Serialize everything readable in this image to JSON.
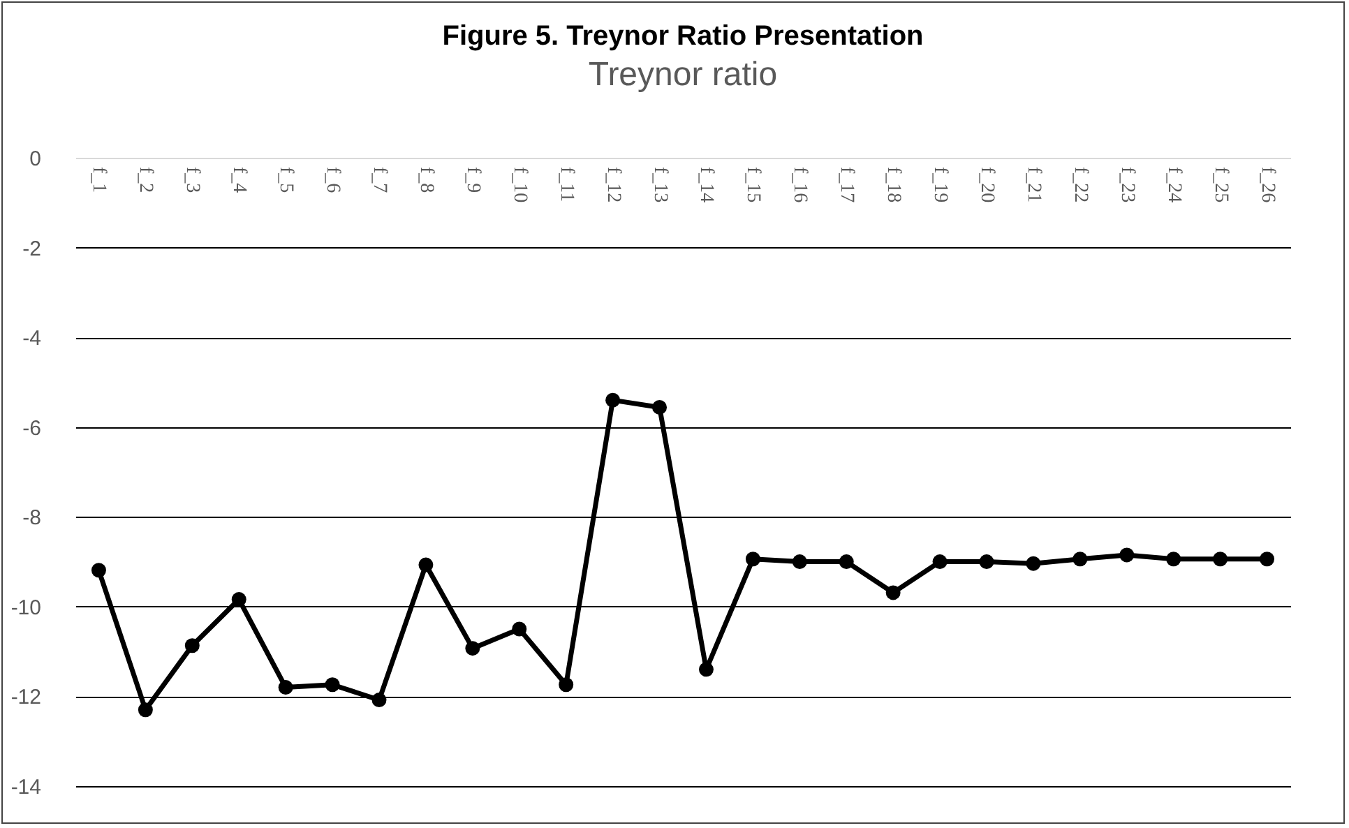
{
  "chart_data": {
    "type": "line",
    "title": "Figure 5. Treynor Ratio Presentation",
    "subtitle": "Treynor ratio",
    "categories": [
      "f_1",
      "f_2",
      "f_3",
      "f_4",
      "f_5",
      "f_6",
      "f_7",
      "f_8",
      "f_9",
      "f_10",
      "f_11",
      "f_12",
      "f_13",
      "f_14",
      "f_15",
      "f_16",
      "f_17",
      "f_18",
      "f_19",
      "f_20",
      "f_21",
      "f_22",
      "f_23",
      "f_24",
      "f_25",
      "f_26"
    ],
    "series": [
      {
        "color": "#000000",
        "values": [
          -9.19,
          -12.3,
          -10.87,
          -9.84,
          -11.8,
          -11.74,
          -12.08,
          -9.07,
          -10.93,
          -10.5,
          -11.74,
          -5.4,
          -5.56,
          -11.4,
          -8.94,
          -9.0,
          -9.0,
          -9.69,
          -9.0,
          -9.0,
          -9.04,
          -8.94,
          -8.85,
          -8.94,
          -8.94,
          -8.94
        ]
      }
    ],
    "ylim": [
      -14,
      0
    ],
    "yticks": [
      0,
      -2,
      -4,
      -6,
      -8,
      -10,
      -12,
      -14
    ],
    "grid": "y",
    "legend": false,
    "marker": "circle",
    "line_style": "solid"
  }
}
